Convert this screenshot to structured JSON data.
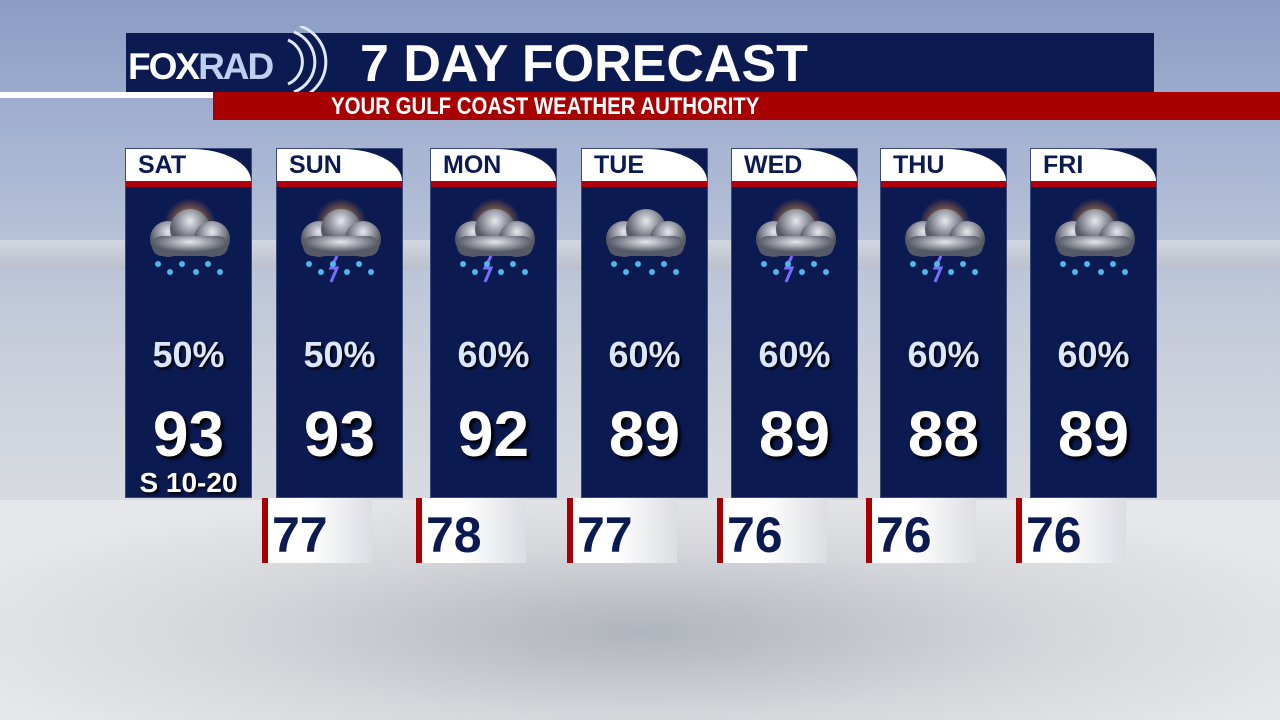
{
  "header": {
    "logo": "FOXRAD",
    "logo_parts": [
      "FOX",
      "RAD"
    ],
    "title": "7 DAY FORECAST",
    "subtitle": "YOUR GULF COAST WEATHER AUTHORITY"
  },
  "colors": {
    "navy": "#0c1a52",
    "red": "#a80000"
  },
  "days": [
    {
      "day": "SAT",
      "icon": "sun-cloud-rain-icon",
      "pop": "50%",
      "high": "93",
      "low": null,
      "wind": "S 10-20"
    },
    {
      "day": "SUN",
      "icon": "sun-cloud-storm-icon",
      "pop": "50%",
      "high": "93",
      "low": "77"
    },
    {
      "day": "MON",
      "icon": "sun-cloud-storm-icon",
      "pop": "60%",
      "high": "92",
      "low": "78"
    },
    {
      "day": "TUE",
      "icon": "cloud-rain-icon",
      "pop": "60%",
      "high": "89",
      "low": "77"
    },
    {
      "day": "WED",
      "icon": "sun-cloud-storm-icon",
      "pop": "60%",
      "high": "89",
      "low": "76"
    },
    {
      "day": "THU",
      "icon": "sun-cloud-storm-icon",
      "pop": "60%",
      "high": "88",
      "low": "76"
    },
    {
      "day": "FRI",
      "icon": "sun-cloud-rain-icon",
      "pop": "60%",
      "high": "89",
      "low": "76"
    }
  ]
}
